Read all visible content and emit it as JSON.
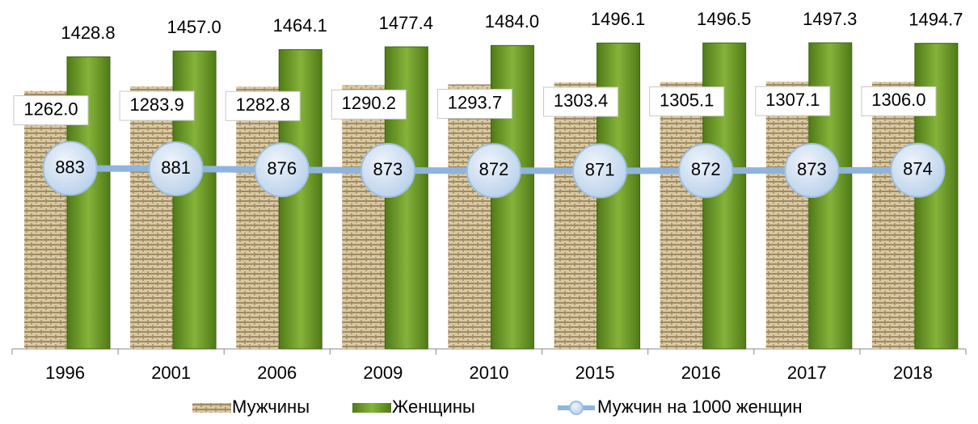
{
  "chart_data": {
    "type": "bar",
    "categories": [
      "1996",
      "2001",
      "2006",
      "2009",
      "2010",
      "2015",
      "2016",
      "2017",
      "2018"
    ],
    "series": [
      {
        "name": "Мужчины",
        "color": "#c9b68d",
        "values": [
          1262.0,
          1283.9,
          1282.8,
          1290.2,
          1293.7,
          1303.4,
          1305.1,
          1307.1,
          1306.0
        ],
        "value_labels": [
          "1262.0",
          "1283.9",
          "1282.8",
          "1290.2",
          "1293.7",
          "1303.4",
          "1305.1",
          "1307.1",
          "1306.0"
        ]
      },
      {
        "name": "Женщины",
        "color": "#76a12c",
        "values": [
          1428.8,
          1457.0,
          1464.1,
          1477.4,
          1484.0,
          1496.1,
          1496.5,
          1497.3,
          1494.7
        ],
        "value_labels": [
          "1428.8",
          "1457.0",
          "1464.1",
          "1477.4",
          "1484.0",
          "1496.1",
          "1496.5",
          "1497.3",
          "1494.7"
        ]
      },
      {
        "name": "Мужчин на 1000 женщин",
        "type": "line",
        "axis": "y2",
        "color": "#8fb5de",
        "values": [
          883,
          881,
          876,
          873,
          872,
          871,
          872,
          873,
          874
        ]
      }
    ],
    "ylim": [
      0,
      1600
    ],
    "y2lim": [
      0,
      1600
    ]
  }
}
